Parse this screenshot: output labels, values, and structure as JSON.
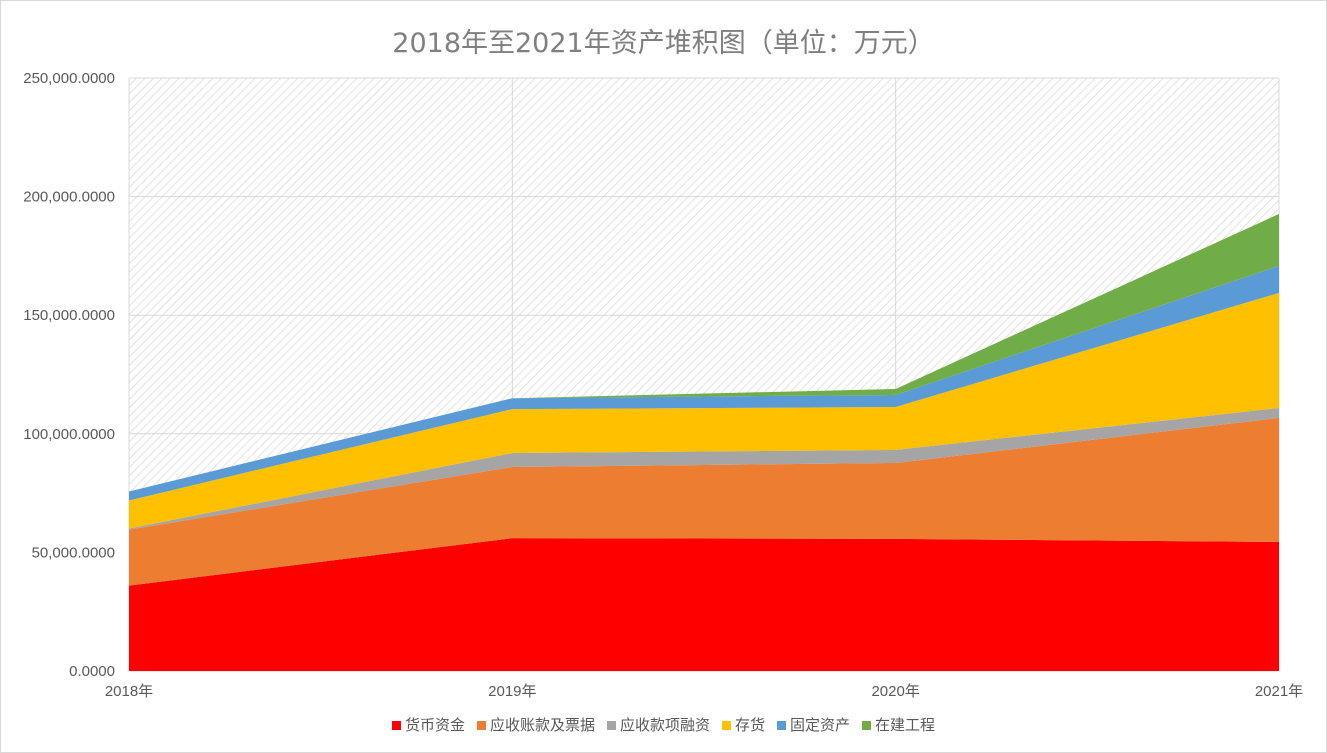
{
  "chart_data": {
    "type": "area",
    "stacked": true,
    "title": "2018年至2021年资产堆积图（单位：万元）",
    "categories": [
      "2018年",
      "2019年",
      "2020年",
      "2021年"
    ],
    "ylim": [
      0,
      250000
    ],
    "yticks": [
      "0.0000",
      "50,000.0000",
      "100,000.0000",
      "150,000.0000",
      "200,000.0000",
      "250,000.0000"
    ],
    "grid": true,
    "legend_position": "bottom",
    "series": [
      {
        "name": "货币资金",
        "color": "#ff0000",
        "values": [
          36000,
          56000,
          55700,
          54400
        ]
      },
      {
        "name": "应收账款及票据",
        "color": "#ed7d31",
        "values": [
          23600,
          30000,
          32000,
          52300
        ]
      },
      {
        "name": "应收款项融资",
        "color": "#a5a5a5",
        "values": [
          500,
          5900,
          5500,
          4200
        ]
      },
      {
        "name": "存货",
        "color": "#ffc000",
        "values": [
          11800,
          18500,
          18100,
          48500
        ]
      },
      {
        "name": "固定资产",
        "color": "#5b9bd5",
        "values": [
          3800,
          4600,
          5100,
          11400
        ]
      },
      {
        "name": "在建工程",
        "color": "#70ad47",
        "values": [
          0,
          0,
          2500,
          21900
        ]
      }
    ]
  }
}
